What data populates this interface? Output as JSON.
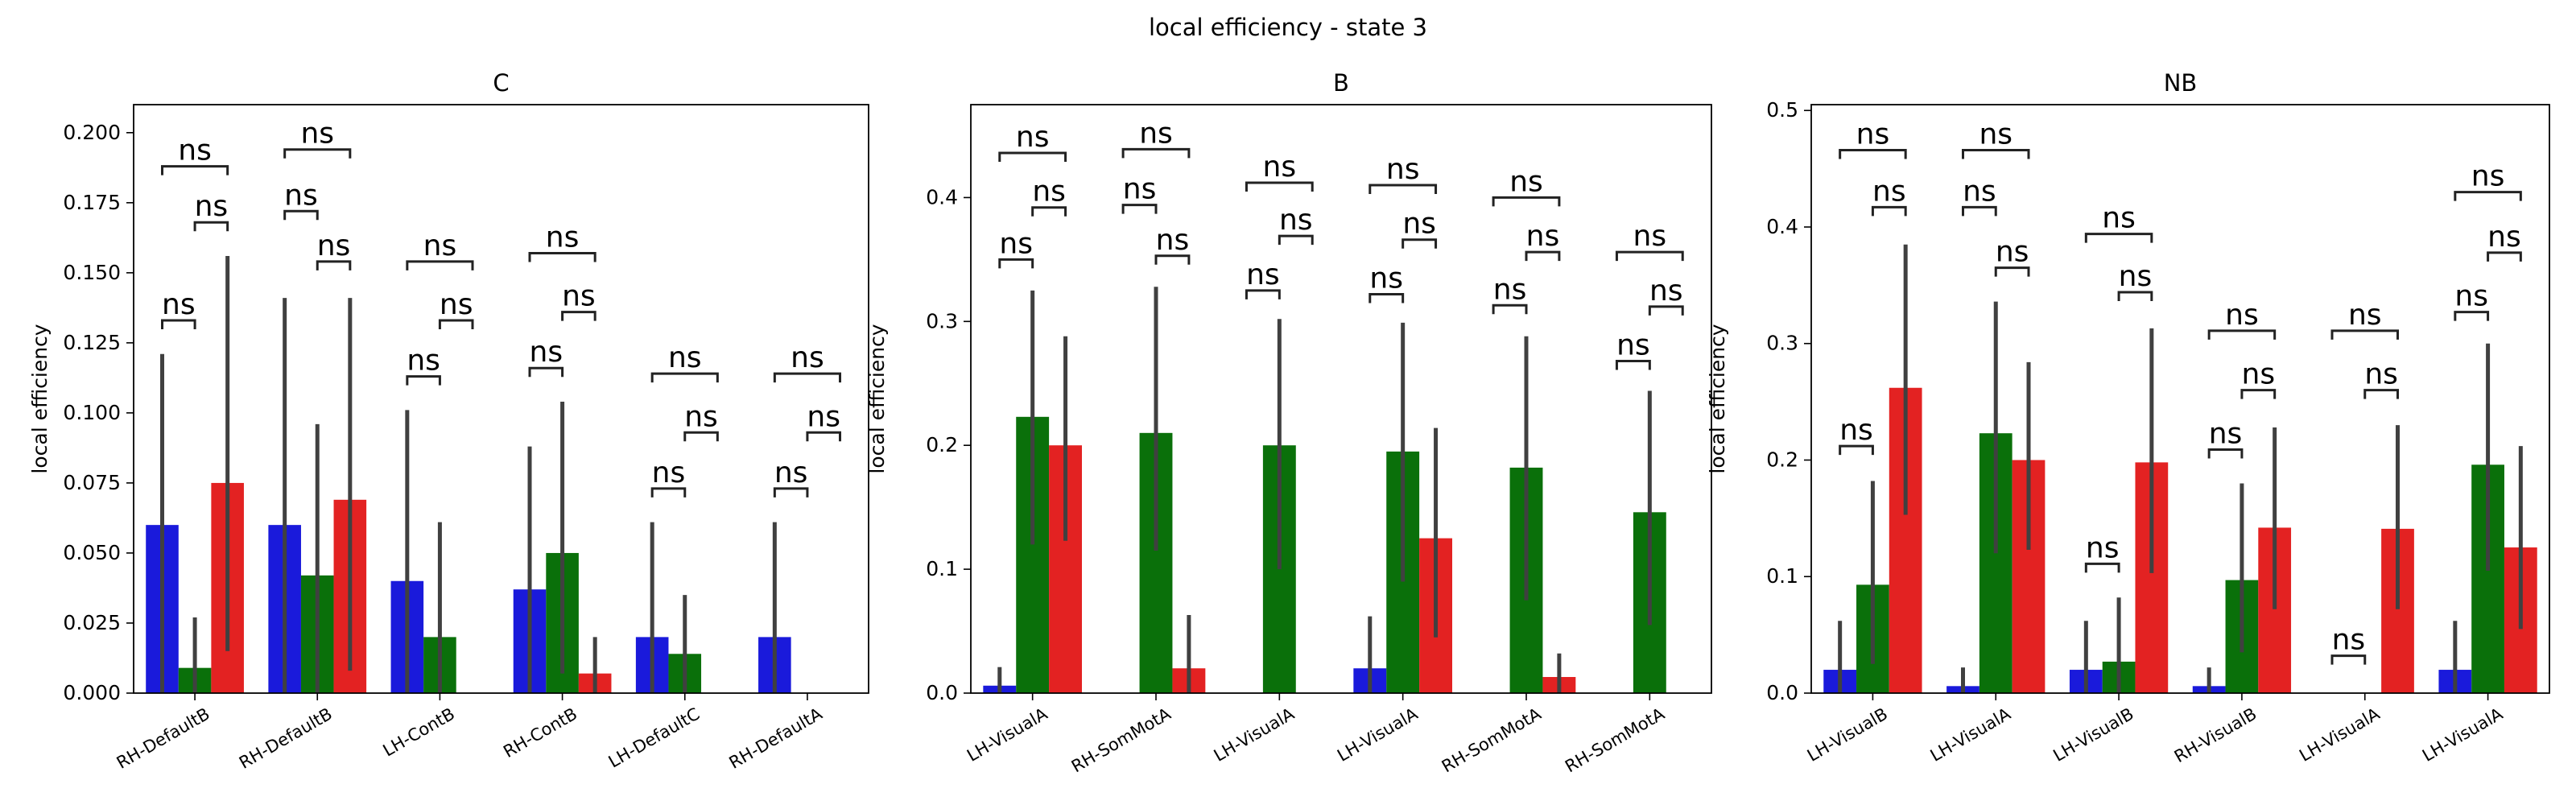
{
  "figure": {
    "suptitle": "local efficiency - state 3",
    "colors": {
      "C": "#1a1adb",
      "B": "#0a700a",
      "NB": "#e32222",
      "errorbar": "#404040",
      "frame": "#000000"
    }
  },
  "chart_data": [
    {
      "type": "bar",
      "title": "C",
      "ylabel": "local efficiency",
      "xlabel": "",
      "ylim": [
        0,
        0.21
      ],
      "yticks": [
        0.0,
        0.025,
        0.05,
        0.075,
        0.1,
        0.125,
        0.15,
        0.175,
        0.2
      ],
      "ytick_labels": [
        "0.000",
        "0.025",
        "0.050",
        "0.075",
        "0.100",
        "0.125",
        "0.150",
        "0.175",
        "0.200"
      ],
      "categories": [
        "RH-DefaultB",
        "RH-DefaultB",
        "LH-ContB",
        "RH-ContB",
        "LH-DefaultC",
        "RH-DefaultA"
      ],
      "series": [
        {
          "key": "C",
          "values": [
            0.06,
            0.06,
            0.04,
            0.037,
            0.02,
            0.02
          ],
          "ci": [
            [
              0,
              0.121
            ],
            [
              0,
              0.141
            ],
            [
              0,
              0.101
            ],
            [
              0,
              0.088
            ],
            [
              0,
              0.061
            ],
            [
              0,
              0.061
            ]
          ]
        },
        {
          "key": "B",
          "values": [
            0.009,
            0.042,
            0.02,
            0.05,
            0.014,
            0.0
          ],
          "ci": [
            [
              0,
              0.027
            ],
            [
              0,
              0.096
            ],
            [
              0,
              0.061
            ],
            [
              0.007,
              0.104
            ],
            [
              0,
              0.035
            ],
            null
          ]
        },
        {
          "key": "NB",
          "values": [
            0.075,
            0.069,
            0.0,
            0.007,
            0.0,
            0.0
          ],
          "ci": [
            [
              0.015,
              0.156
            ],
            [
              0.008,
              0.141
            ],
            null,
            [
              0,
              0.02
            ],
            null,
            null
          ]
        }
      ],
      "annotations": [
        {
          "text": "ns",
          "group": 0,
          "from": 0,
          "to": 1,
          "level": 0.133
        },
        {
          "text": "ns",
          "group": 0,
          "from": 1,
          "to": 2,
          "level": 0.168
        },
        {
          "text": "ns",
          "group": 0,
          "from": 0,
          "to": 2,
          "level": 0.188
        },
        {
          "text": "ns",
          "group": 1,
          "from": 0,
          "to": 1,
          "level": 0.172
        },
        {
          "text": "ns",
          "group": 1,
          "from": 1,
          "to": 2,
          "level": 0.154
        },
        {
          "text": "ns",
          "group": 1,
          "from": 0,
          "to": 2,
          "level": 0.194
        },
        {
          "text": "ns",
          "group": 2,
          "from": 0,
          "to": 1,
          "level": 0.113
        },
        {
          "text": "ns",
          "group": 2,
          "from": 1,
          "to": 2,
          "level": 0.133
        },
        {
          "text": "ns",
          "group": 2,
          "from": 0,
          "to": 2,
          "level": 0.154
        },
        {
          "text": "ns",
          "group": 3,
          "from": 0,
          "to": 1,
          "level": 0.116
        },
        {
          "text": "ns",
          "group": 3,
          "from": 1,
          "to": 2,
          "level": 0.136
        },
        {
          "text": "ns",
          "group": 3,
          "from": 0,
          "to": 2,
          "level": 0.157
        },
        {
          "text": "ns",
          "group": 4,
          "from": 0,
          "to": 1,
          "level": 0.073
        },
        {
          "text": "ns",
          "group": 4,
          "from": 1,
          "to": 2,
          "level": 0.093
        },
        {
          "text": "ns",
          "group": 4,
          "from": 0,
          "to": 2,
          "level": 0.114
        },
        {
          "text": "ns",
          "group": 5,
          "from": 0,
          "to": 1,
          "level": 0.073
        },
        {
          "text": "ns",
          "group": 5,
          "from": 1,
          "to": 2,
          "level": 0.093
        },
        {
          "text": "ns",
          "group": 5,
          "from": 0,
          "to": 2,
          "level": 0.114
        }
      ]
    },
    {
      "type": "bar",
      "title": "B",
      "ylabel": "local efficiency",
      "xlabel": "",
      "ylim": [
        0,
        0.475
      ],
      "yticks": [
        0.0,
        0.1,
        0.2,
        0.3,
        0.4
      ],
      "ytick_labels": [
        "0.0",
        "0.1",
        "0.2",
        "0.3",
        "0.4"
      ],
      "categories": [
        "LH-VisualA",
        "RH-SomMotA",
        "LH-VisualA",
        "LH-VisualA",
        "RH-SomMotA",
        "RH-SomMotA"
      ],
      "series": [
        {
          "key": "C",
          "values": [
            0.006,
            0.0,
            0.0,
            0.02,
            0.0,
            0.0
          ],
          "ci": [
            [
              0,
              0.021
            ],
            null,
            null,
            [
              0,
              0.062
            ],
            null,
            null
          ]
        },
        {
          "key": "B",
          "values": [
            0.223,
            0.21,
            0.2,
            0.195,
            0.182,
            0.146
          ],
          "ci": [
            [
              0.12,
              0.325
            ],
            [
              0.115,
              0.328
            ],
            [
              0.1,
              0.302
            ],
            [
              0.09,
              0.299
            ],
            [
              0.075,
              0.288
            ],
            [
              0.055,
              0.244
            ]
          ]
        },
        {
          "key": "NB",
          "values": [
            0.2,
            0.02,
            0.0,
            0.125,
            0.013,
            0.0
          ],
          "ci": [
            [
              0.123,
              0.288
            ],
            [
              0,
              0.063
            ],
            null,
            [
              0.045,
              0.214
            ],
            [
              0,
              0.032
            ],
            null
          ]
        }
      ],
      "annotations": [
        {
          "text": "ns",
          "group": 0,
          "from": 0,
          "to": 1,
          "level": 0.35
        },
        {
          "text": "ns",
          "group": 0,
          "from": 1,
          "to": 2,
          "level": 0.392
        },
        {
          "text": "ns",
          "group": 0,
          "from": 0,
          "to": 2,
          "level": 0.436
        },
        {
          "text": "ns",
          "group": 1,
          "from": 0,
          "to": 1,
          "level": 0.394
        },
        {
          "text": "ns",
          "group": 1,
          "from": 1,
          "to": 2,
          "level": 0.353
        },
        {
          "text": "ns",
          "group": 1,
          "from": 0,
          "to": 2,
          "level": 0.439
        },
        {
          "text": "ns",
          "group": 2,
          "from": 0,
          "to": 1,
          "level": 0.325
        },
        {
          "text": "ns",
          "group": 2,
          "from": 1,
          "to": 2,
          "level": 0.369
        },
        {
          "text": "ns",
          "group": 2,
          "from": 0,
          "to": 2,
          "level": 0.412
        },
        {
          "text": "ns",
          "group": 3,
          "from": 0,
          "to": 1,
          "level": 0.322
        },
        {
          "text": "ns",
          "group": 3,
          "from": 1,
          "to": 2,
          "level": 0.366
        },
        {
          "text": "ns",
          "group": 3,
          "from": 0,
          "to": 2,
          "level": 0.41
        },
        {
          "text": "ns",
          "group": 4,
          "from": 0,
          "to": 1,
          "level": 0.313
        },
        {
          "text": "ns",
          "group": 4,
          "from": 1,
          "to": 2,
          "level": 0.356
        },
        {
          "text": "ns",
          "group": 4,
          "from": 0,
          "to": 2,
          "level": 0.4
        },
        {
          "text": "ns",
          "group": 5,
          "from": 0,
          "to": 1,
          "level": 0.268
        },
        {
          "text": "ns",
          "group": 5,
          "from": 1,
          "to": 2,
          "level": 0.312
        },
        {
          "text": "ns",
          "group": 5,
          "from": 0,
          "to": 2,
          "level": 0.356
        }
      ]
    },
    {
      "type": "bar",
      "title": "NB",
      "ylabel": "local efficiency",
      "xlabel": "",
      "ylim": [
        0,
        0.505
      ],
      "yticks": [
        0.0,
        0.1,
        0.2,
        0.3,
        0.4,
        0.5
      ],
      "ytick_labels": [
        "0.0",
        "0.1",
        "0.2",
        "0.3",
        "0.4",
        "0.5"
      ],
      "categories": [
        "LH-VisualB",
        "LH-VisualA",
        "LH-VisualB",
        "RH-VisualB",
        "LH-VisualA",
        "LH-VisualA"
      ],
      "series": [
        {
          "key": "C",
          "values": [
            0.02,
            0.006,
            0.02,
            0.006,
            0.0,
            0.02
          ],
          "ci": [
            [
              0,
              0.062
            ],
            [
              0,
              0.022
            ],
            [
              0,
              0.062
            ],
            [
              0,
              0.022
            ],
            null,
            [
              0,
              0.062
            ]
          ]
        },
        {
          "key": "B",
          "values": [
            0.093,
            0.223,
            0.027,
            0.097,
            0.0,
            0.196
          ],
          "ci": [
            [
              0.025,
              0.182
            ],
            [
              0.12,
              0.336
            ],
            [
              0,
              0.082
            ],
            [
              0.035,
              0.18
            ],
            null,
            [
              0.105,
              0.3
            ]
          ]
        },
        {
          "key": "NB",
          "values": [
            0.262,
            0.2,
            0.198,
            0.142,
            0.141,
            0.125
          ],
          "ci": [
            [
              0.153,
              0.385
            ],
            [
              0.123,
              0.284
            ],
            [
              0.103,
              0.313
            ],
            [
              0.072,
              0.228
            ],
            [
              0.072,
              0.23
            ],
            [
              0.055,
              0.212
            ]
          ]
        }
      ],
      "annotations": [
        {
          "text": "ns",
          "group": 0,
          "from": 0,
          "to": 1,
          "level": 0.212
        },
        {
          "text": "ns",
          "group": 0,
          "from": 1,
          "to": 2,
          "level": 0.417
        },
        {
          "text": "ns",
          "group": 0,
          "from": 0,
          "to": 2,
          "level": 0.466
        },
        {
          "text": "ns",
          "group": 1,
          "from": 0,
          "to": 1,
          "level": 0.417
        },
        {
          "text": "ns",
          "group": 1,
          "from": 1,
          "to": 2,
          "level": 0.365
        },
        {
          "text": "ns",
          "group": 1,
          "from": 0,
          "to": 2,
          "level": 0.466
        },
        {
          "text": "ns",
          "group": 2,
          "from": 0,
          "to": 1,
          "level": 0.111
        },
        {
          "text": "ns",
          "group": 2,
          "from": 1,
          "to": 2,
          "level": 0.344
        },
        {
          "text": "ns",
          "group": 2,
          "from": 0,
          "to": 2,
          "level": 0.394
        },
        {
          "text": "ns",
          "group": 3,
          "from": 0,
          "to": 1,
          "level": 0.209
        },
        {
          "text": "ns",
          "group": 3,
          "from": 1,
          "to": 2,
          "level": 0.26
        },
        {
          "text": "ns",
          "group": 3,
          "from": 0,
          "to": 2,
          "level": 0.311
        },
        {
          "text": "ns",
          "group": 4,
          "from": 0,
          "to": 1,
          "level": 0.032
        },
        {
          "text": "ns",
          "group": 4,
          "from": 1,
          "to": 2,
          "level": 0.26
        },
        {
          "text": "ns",
          "group": 4,
          "from": 0,
          "to": 2,
          "level": 0.311
        },
        {
          "text": "ns",
          "group": 5,
          "from": 0,
          "to": 1,
          "level": 0.327
        },
        {
          "text": "ns",
          "group": 5,
          "from": 1,
          "to": 2,
          "level": 0.378
        },
        {
          "text": "ns",
          "group": 5,
          "from": 0,
          "to": 2,
          "level": 0.43
        }
      ]
    }
  ]
}
